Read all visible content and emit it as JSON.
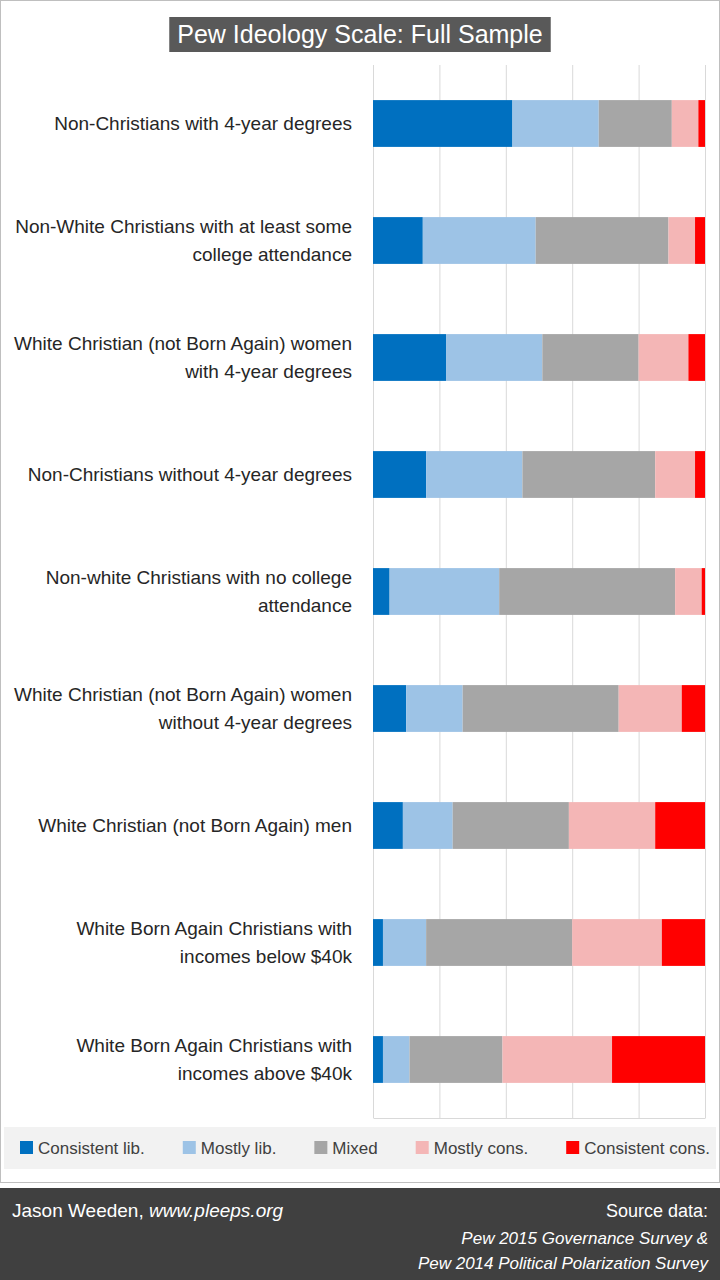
{
  "chart_data": {
    "type": "bar",
    "title": "Pew Ideology Scale: Full Sample",
    "orientation": "horizontal",
    "stacked": true,
    "grid": true,
    "tick_labels": false,
    "legend": "bottom",
    "categories": [
      "Non-Christians with 4-year degrees",
      "Non-White Christians with at least some college attendance",
      "White Christian (not Born Again) women with 4-year degrees",
      "Non-Christians without 4-year degrees",
      "Non-white Christians with no college attendance",
      "White Christian (not Born Again) women without 4-year degrees",
      "White Christian (not Born Again) men",
      "White Born Again Christians with incomes below $40k",
      "White Born Again Christians with incomes above $40k"
    ],
    "series": [
      {
        "name": "Consistent lib.",
        "color": "#0070c0",
        "values": [
          42,
          15,
          22,
          16,
          5,
          10,
          9,
          3,
          3
        ]
      },
      {
        "name": "Mostly lib.",
        "color": "#9dc3e6",
        "values": [
          26,
          34,
          29,
          29,
          33,
          17,
          15,
          13,
          8
        ]
      },
      {
        "name": "Mixed",
        "color": "#a6a6a6",
        "values": [
          22,
          40,
          29,
          40,
          53,
          47,
          35,
          44,
          28
        ]
      },
      {
        "name": "Mostly cons.",
        "color": "#f4b6b6",
        "values": [
          8,
          8,
          15,
          12,
          8,
          19,
          26,
          27,
          33
        ]
      },
      {
        "name": "Consistent cons.",
        "color": "#ff0000",
        "values": [
          2,
          3,
          5,
          3,
          1,
          7,
          15,
          13,
          28
        ]
      }
    ],
    "xlim": [
      0,
      100
    ],
    "xticks": [
      0,
      20,
      40,
      60,
      80,
      100
    ],
    "annotations": [
      "Jason Weeden, www.pleeps.org",
      "Source data:",
      "Pew 2015 Governance Survey &",
      "Pew 2014 Political Polarization Survey"
    ]
  }
}
